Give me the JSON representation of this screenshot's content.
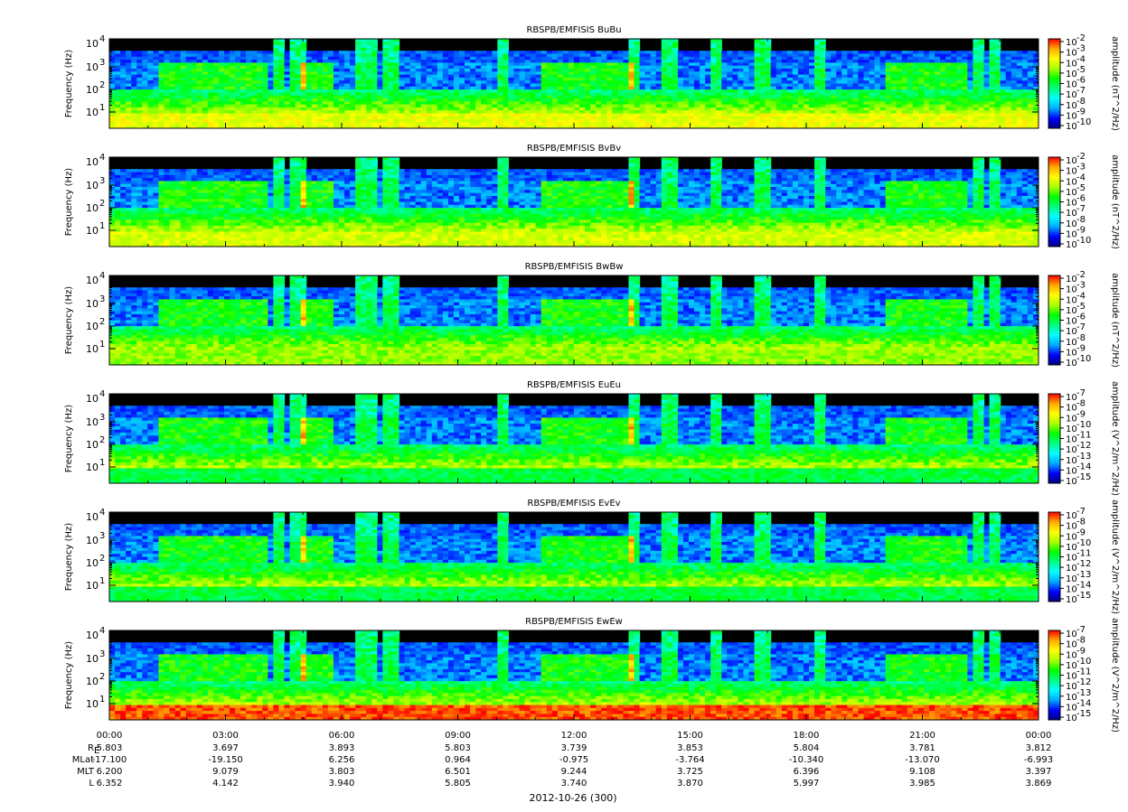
{
  "chart_data": {
    "type": "heatmap",
    "panels": [
      {
        "title": "RBSPB/EMFISIS  BuBu",
        "ylabel": "Frequency (Hz)",
        "zlabel": "amplitude (nT^2/Hz)",
        "zlim": [
          1e-10,
          0.01
        ],
        "y_exps": [
          1,
          2,
          3,
          4
        ],
        "z_exps": [
          -2,
          -3,
          -4,
          -5,
          -6,
          -7,
          -8,
          -9,
          -10
        ],
        "base_level": 0.75
      },
      {
        "title": "RBSPB/EMFISIS  BvBv",
        "ylabel": "Frequency (Hz)",
        "zlabel": "amplitude (nT^2/Hz)",
        "zlim": [
          1e-10,
          0.01
        ],
        "y_exps": [
          1,
          2,
          3,
          4
        ],
        "z_exps": [
          -2,
          -3,
          -4,
          -5,
          -6,
          -7,
          -8,
          -9,
          -10
        ],
        "base_level": 0.72
      },
      {
        "title": "RBSPB/EMFISIS  BwBw",
        "ylabel": "Frequency (Hz)",
        "zlabel": "amplitude (nT^2/Hz)",
        "zlim": [
          1e-10,
          0.01
        ],
        "y_exps": [
          1,
          2,
          3,
          4
        ],
        "z_exps": [
          -2,
          -3,
          -4,
          -5,
          -6,
          -7,
          -8,
          -9,
          -10
        ],
        "base_level": 0.65
      },
      {
        "title": "RBSPB/EMFISIS  EuEu",
        "ylabel": "Frequency (Hz)",
        "zlabel": "amplitude (V^2/m^2/Hz)",
        "zlim": [
          1e-15,
          1e-07
        ],
        "y_exps": [
          1,
          2,
          3,
          4
        ],
        "z_exps": [
          -7,
          -8,
          -9,
          -10,
          -11,
          -12,
          -13,
          -14,
          -15
        ],
        "base_level": 0.5
      },
      {
        "title": "RBSPB/EMFISIS  EvEv",
        "ylabel": "Frequency (Hz)",
        "zlabel": "amplitude (V^2/m^2/Hz)",
        "zlim": [
          1e-15,
          1e-07
        ],
        "y_exps": [
          1,
          2,
          3,
          4
        ],
        "z_exps": [
          -7,
          -8,
          -9,
          -10,
          -11,
          -12,
          -13,
          -14,
          -15
        ],
        "base_level": 0.5
      },
      {
        "title": "RBSPB/EMFISIS  EwEw",
        "ylabel": "Frequency (Hz)",
        "zlabel": "amplitude (V^2/m^2/Hz)",
        "zlim": [
          1e-15,
          1e-07
        ],
        "y_exps": [
          1,
          2,
          3,
          4
        ],
        "z_exps": [
          -7,
          -8,
          -9,
          -10,
          -11,
          -12,
          -13,
          -14,
          -15
        ],
        "base_level": 0.95
      }
    ],
    "x_tick_labels": [
      "00:00",
      "03:00",
      "06:00",
      "09:00",
      "12:00",
      "15:00",
      "18:00",
      "21:00",
      "00:00"
    ],
    "ephemeris": {
      "labels": [
        "R",
        "MLat",
        "MLT",
        "L"
      ],
      "R_subscript": "E",
      "rows": [
        [
          "5.803",
          "3.697",
          "3.893",
          "5.803",
          "3.739",
          "3.853",
          "5.804",
          "3.781",
          "3.812"
        ],
        [
          "-17.100",
          "-19.150",
          "6.256",
          "0.964",
          "-0.975",
          "-3.764",
          "-10.340",
          "-13.070",
          "-6.993"
        ],
        [
          "6.200",
          "9.079",
          "3.803",
          "6.501",
          "9.244",
          "3.725",
          "6.396",
          "9.108",
          "3.397"
        ],
        [
          "6.352",
          "4.142",
          "3.940",
          "5.805",
          "3.740",
          "3.870",
          "5.997",
          "3.985",
          "3.869"
        ]
      ]
    },
    "date_label": "2012-10-26 (300)",
    "colors": {
      "colormap": [
        "#000080",
        "#0000ff",
        "#00aaff",
        "#00ffff",
        "#00ff80",
        "#00ff00",
        "#aaff00",
        "#ffff00",
        "#ffaa00",
        "#ff0000"
      ],
      "background": "#000000"
    }
  }
}
